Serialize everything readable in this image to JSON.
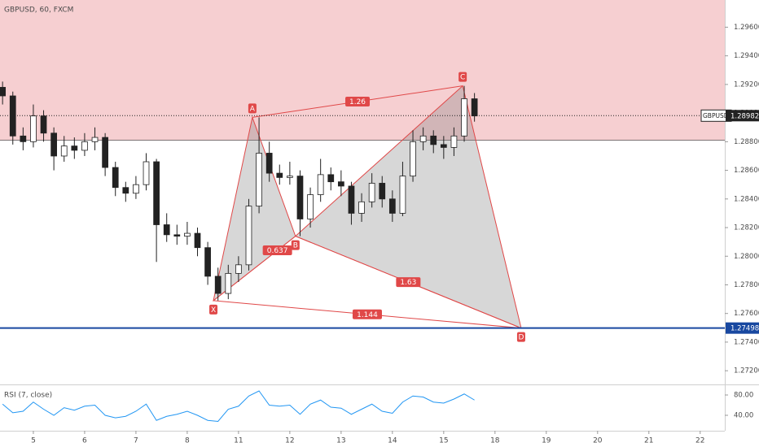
{
  "chart_data": {
    "type": "candlestick",
    "title": "GBPUSD, 60, FXCM",
    "xlim": [
      -0.65,
      13.48
    ],
    "xticks": [
      {
        "value": 0,
        "label": "5"
      },
      {
        "value": 1,
        "label": "6"
      },
      {
        "value": 2,
        "label": "7"
      },
      {
        "value": 3,
        "label": "8"
      },
      {
        "value": 4,
        "label": "11"
      },
      {
        "value": 5,
        "label": "12"
      },
      {
        "value": 6,
        "label": "13"
      },
      {
        "value": 7,
        "label": "14"
      },
      {
        "value": 8,
        "label": "15"
      },
      {
        "value": 9,
        "label": "18"
      },
      {
        "value": 10,
        "label": "19"
      },
      {
        "value": 11,
        "label": "20"
      },
      {
        "value": 12,
        "label": "21"
      },
      {
        "value": 13,
        "label": "22"
      }
    ],
    "ylim": [
      1.2711,
      1.2979
    ],
    "yticks": [
      {
        "value": 1.272,
        "label": "1.27200"
      },
      {
        "value": 1.274,
        "label": "1.27400"
      },
      {
        "value": 1.276,
        "label": "1.27600"
      },
      {
        "value": 1.278,
        "label": "1.27800"
      },
      {
        "value": 1.28,
        "label": "1.28000"
      },
      {
        "value": 1.282,
        "label": "1.28200"
      },
      {
        "value": 1.284,
        "label": "1.28400"
      },
      {
        "value": 1.286,
        "label": "1.28600"
      },
      {
        "value": 1.288,
        "label": "1.28800"
      },
      {
        "value": 1.29,
        "label": "1.29000"
      },
      {
        "value": 1.292,
        "label": "1.29200"
      },
      {
        "value": 1.294,
        "label": "1.29400"
      },
      {
        "value": 1.296,
        "label": "1.29600"
      }
    ],
    "up_color": "#ffffff",
    "down_color": "#222222",
    "x": [
      -0.6,
      -0.4,
      -0.2,
      0,
      0.2,
      0.4,
      0.6,
      0.8,
      1.0,
      1.2,
      1.4,
      1.6,
      1.8,
      2.0,
      2.2,
      2.4,
      2.6,
      2.8,
      3.0,
      3.2,
      3.4,
      3.6,
      3.8,
      4.0,
      4.2,
      4.4,
      4.6,
      4.8,
      5.0,
      5.2,
      5.4,
      5.6,
      5.8,
      6.0,
      6.2,
      6.4,
      6.6,
      6.8,
      7.0,
      7.2,
      7.4,
      7.6,
      7.8,
      8.0,
      8.2,
      8.4,
      8.6
    ],
    "open": [
      1.2918,
      1.2912,
      1.2884,
      1.288,
      1.2898,
      1.2886,
      1.287,
      1.2877,
      1.2874,
      1.288,
      1.2883,
      1.2862,
      1.2848,
      1.2844,
      1.285,
      1.2866,
      1.2822,
      1.2815,
      1.2814,
      1.2816,
      1.2806,
      1.2786,
      1.2774,
      1.2788,
      1.2794,
      1.2835,
      1.2872,
      1.2858,
      1.2855,
      1.2856,
      1.2826,
      1.2843,
      1.2857,
      1.2852,
      1.2849,
      1.283,
      1.2838,
      1.2851,
      1.284,
      1.283,
      1.2856,
      1.288,
      1.2884,
      1.2878,
      1.2876,
      1.2884,
      1.291
    ],
    "high": [
      1.2922,
      1.2915,
      1.289,
      1.2906,
      1.2902,
      1.289,
      1.2884,
      1.2883,
      1.2886,
      1.289,
      1.2886,
      1.2866,
      1.2852,
      1.2856,
      1.2872,
      1.2868,
      1.283,
      1.2822,
      1.2824,
      1.282,
      1.281,
      1.2792,
      1.2794,
      1.28,
      1.284,
      1.2897,
      1.288,
      1.2864,
      1.2866,
      1.286,
      1.2848,
      1.2868,
      1.2862,
      1.286,
      1.2852,
      1.2844,
      1.2858,
      1.2856,
      1.2846,
      1.2866,
      1.2888,
      1.289,
      1.2888,
      1.2884,
      1.289,
      1.2919,
      1.2914
    ],
    "low": [
      1.2906,
      1.2878,
      1.2874,
      1.2876,
      1.288,
      1.286,
      1.2866,
      1.2868,
      1.287,
      1.2874,
      1.2856,
      1.2842,
      1.2838,
      1.284,
      1.2846,
      1.2796,
      1.281,
      1.2808,
      1.2808,
      1.28,
      1.278,
      1.2769,
      1.277,
      1.2782,
      1.279,
      1.283,
      1.2852,
      1.285,
      1.285,
      1.2814,
      1.282,
      1.2838,
      1.2846,
      1.2842,
      1.2822,
      1.2824,
      1.2834,
      1.2834,
      1.2824,
      1.2828,
      1.2852,
      1.2874,
      1.2872,
      1.2868,
      1.287,
      1.288,
      1.2894
    ],
    "close": [
      1.2912,
      1.2884,
      1.288,
      1.2898,
      1.2886,
      1.287,
      1.2877,
      1.2874,
      1.288,
      1.2883,
      1.2862,
      1.2848,
      1.2844,
      1.285,
      1.2866,
      1.2822,
      1.2815,
      1.2814,
      1.2816,
      1.2806,
      1.2786,
      1.2774,
      1.2788,
      1.2794,
      1.2835,
      1.2872,
      1.2858,
      1.2855,
      1.2856,
      1.2826,
      1.2843,
      1.2857,
      1.2852,
      1.2849,
      1.283,
      1.2838,
      1.2851,
      1.284,
      1.283,
      1.2856,
      1.288,
      1.2884,
      1.2878,
      1.2876,
      1.2884,
      1.291,
      1.2898
    ],
    "zone": {
      "low": 1.2881,
      "color": "#f4c7c9"
    },
    "levels": [
      {
        "value": 1.27498,
        "label": "1.27498",
        "color": "#1848a0"
      }
    ],
    "last_price": {
      "name": "GBPUSD",
      "value": 1.28982,
      "label": "1.28982"
    },
    "pattern": {
      "color": "#e04848",
      "points": [
        {
          "label": "X",
          "x": 3.51,
          "price": 1.2769
        },
        {
          "label": "A",
          "x": 4.27,
          "price": 1.2897
        },
        {
          "label": "B",
          "x": 5.11,
          "price": 1.2814
        },
        {
          "label": "C",
          "x": 8.37,
          "price": 1.2919
        },
        {
          "label": "D",
          "x": 9.51,
          "price": 1.27498
        }
      ],
      "ratios": {
        "XB": "0.637",
        "AC": "1.26",
        "BD": "1.63",
        "XD": "1.144"
      }
    },
    "rsi": {
      "title": "RSI (7, close)",
      "color": "#2196f3",
      "ylim": [
        9.6,
        97.6
      ],
      "yticks": [
        {
          "value": 80,
          "label": "80.00"
        },
        {
          "value": 40,
          "label": "40.00"
        }
      ],
      "values": [
        62,
        45,
        48,
        66,
        52,
        40,
        55,
        50,
        58,
        60,
        40,
        35,
        38,
        48,
        62,
        30,
        38,
        42,
        48,
        40,
        30,
        28,
        52,
        58,
        78,
        88,
        60,
        58,
        60,
        42,
        62,
        70,
        56,
        54,
        42,
        52,
        62,
        48,
        44,
        66,
        78,
        76,
        66,
        64,
        72,
        82,
        70
      ]
    }
  }
}
